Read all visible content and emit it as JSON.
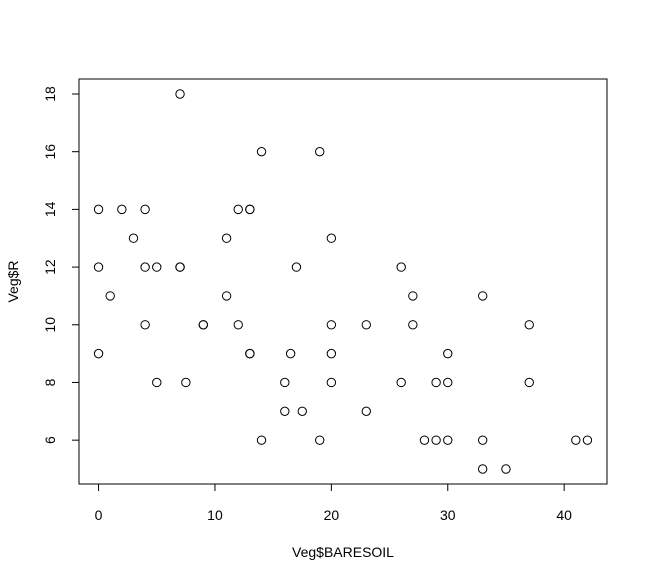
{
  "chart_data": {
    "type": "scatter",
    "title": "",
    "xlabel": "Veg$BARESOIL",
    "ylabel": "Veg$R",
    "xlim": [
      -1.68,
      43.68
    ],
    "ylim": [
      4.48,
      18.52
    ],
    "x_ticks": [
      0,
      10,
      20,
      30,
      40
    ],
    "y_ticks": [
      6,
      8,
      10,
      12,
      14,
      16,
      18
    ],
    "x_tick_labels": [
      "0",
      "10",
      "20",
      "30",
      "40"
    ],
    "y_tick_labels": [
      "6",
      "8",
      "10",
      "12",
      "14",
      "16",
      "18"
    ],
    "grid": false,
    "legend": "none",
    "marker": "open-circle",
    "point_color": "#000000",
    "points": [
      {
        "x": 0,
        "y": 14
      },
      {
        "x": 0,
        "y": 12
      },
      {
        "x": 0,
        "y": 9
      },
      {
        "x": 1,
        "y": 11
      },
      {
        "x": 2,
        "y": 14
      },
      {
        "x": 3,
        "y": 13
      },
      {
        "x": 4,
        "y": 14
      },
      {
        "x": 4,
        "y": 12
      },
      {
        "x": 4,
        "y": 10
      },
      {
        "x": 5,
        "y": 12
      },
      {
        "x": 5,
        "y": 8
      },
      {
        "x": 7,
        "y": 18
      },
      {
        "x": 7,
        "y": 12
      },
      {
        "x": 7,
        "y": 12
      },
      {
        "x": 7.5,
        "y": 8
      },
      {
        "x": 9,
        "y": 10
      },
      {
        "x": 9,
        "y": 10
      },
      {
        "x": 11,
        "y": 13
      },
      {
        "x": 11,
        "y": 11
      },
      {
        "x": 12,
        "y": 14
      },
      {
        "x": 12,
        "y": 10
      },
      {
        "x": 13,
        "y": 14
      },
      {
        "x": 13,
        "y": 14
      },
      {
        "x": 13,
        "y": 9
      },
      {
        "x": 13,
        "y": 9
      },
      {
        "x": 14,
        "y": 16
      },
      {
        "x": 14,
        "y": 6
      },
      {
        "x": 16,
        "y": 8
      },
      {
        "x": 16,
        "y": 7
      },
      {
        "x": 16.5,
        "y": 9
      },
      {
        "x": 17,
        "y": 12
      },
      {
        "x": 17.5,
        "y": 7
      },
      {
        "x": 19,
        "y": 16
      },
      {
        "x": 19,
        "y": 6
      },
      {
        "x": 20,
        "y": 13
      },
      {
        "x": 20,
        "y": 10
      },
      {
        "x": 20,
        "y": 9
      },
      {
        "x": 20,
        "y": 8
      },
      {
        "x": 23,
        "y": 10
      },
      {
        "x": 23,
        "y": 7
      },
      {
        "x": 26,
        "y": 12
      },
      {
        "x": 26,
        "y": 8
      },
      {
        "x": 27,
        "y": 11
      },
      {
        "x": 27,
        "y": 10
      },
      {
        "x": 28,
        "y": 6
      },
      {
        "x": 29,
        "y": 8
      },
      {
        "x": 29,
        "y": 6
      },
      {
        "x": 30,
        "y": 9
      },
      {
        "x": 30,
        "y": 8
      },
      {
        "x": 30,
        "y": 6
      },
      {
        "x": 33,
        "y": 11
      },
      {
        "x": 33,
        "y": 6
      },
      {
        "x": 33,
        "y": 5
      },
      {
        "x": 35,
        "y": 5
      },
      {
        "x": 37,
        "y": 10
      },
      {
        "x": 37,
        "y": 8
      },
      {
        "x": 41,
        "y": 6
      },
      {
        "x": 42,
        "y": 6
      }
    ]
  }
}
